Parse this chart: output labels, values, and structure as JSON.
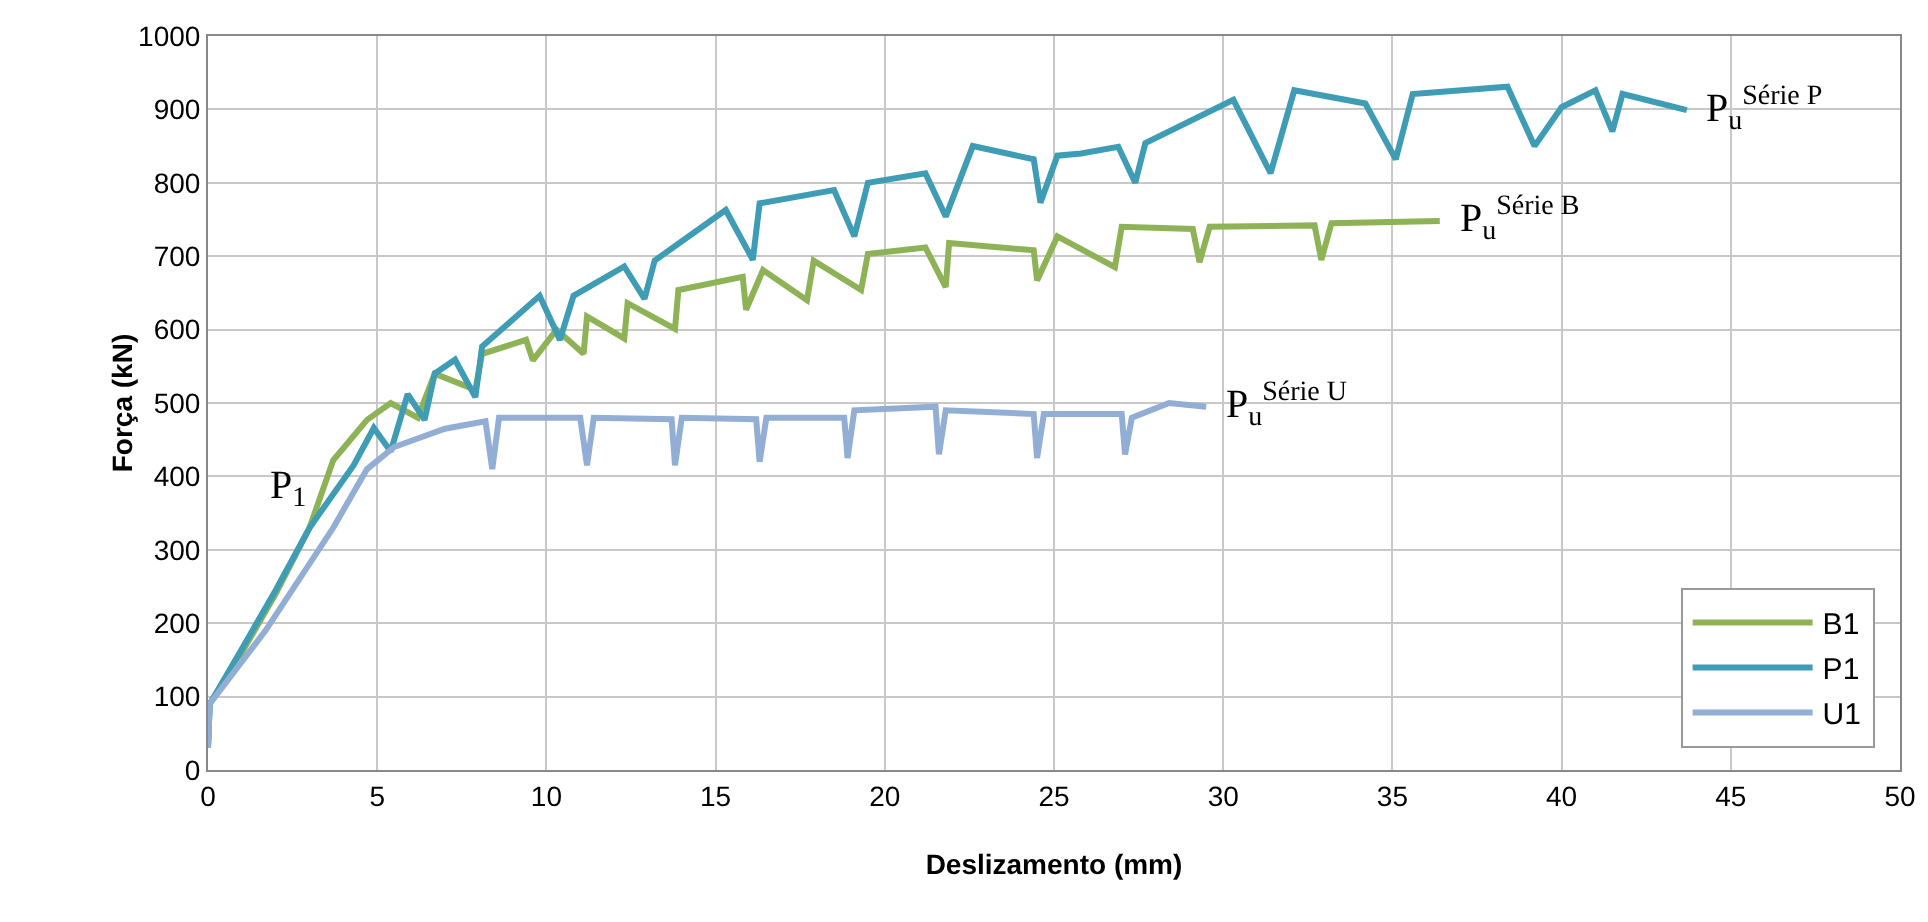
{
  "chart_data": {
    "type": "line",
    "xlabel": "Deslizamento (mm)",
    "ylabel": "Força (kN)",
    "xlim": [
      0,
      50
    ],
    "xticks": [
      0,
      5,
      10,
      15,
      20,
      25,
      30,
      35,
      40,
      45,
      50
    ],
    "ylim": [
      0,
      1000
    ],
    "yticks": [
      0,
      100,
      200,
      300,
      400,
      500,
      600,
      700,
      800,
      900,
      1000
    ],
    "grid": true,
    "legend": "bottom right",
    "marker": "none",
    "line_style": "solid",
    "annotations": [
      {
        "text": "P$_{1}$",
        "x": 3.7,
        "y": 422
      },
      {
        "text": "P$_{u}$$^{Série P}$",
        "x": 43.7,
        "y": 899
      },
      {
        "text": "P$_{u}$$^{Série B}$",
        "x": 36.4,
        "y": 748
      },
      {
        "text": "P$_{u}$$^{Série U}$",
        "x": 29.5,
        "y": 495
      }
    ],
    "series": [
      {
        "name": "B1",
        "color": "#8db356",
        "x": [
          0,
          0.05,
          1,
          2,
          3,
          3.7,
          4.7,
          5.4,
          6.2,
          6.7,
          7.9,
          8.1,
          9.4,
          9.6,
          10.3,
          11.1,
          11.2,
          12.3,
          12.4,
          13.8,
          13.9,
          15.8,
          15.9,
          16.4,
          17.7,
          17.9,
          19.3,
          19.5,
          21.2,
          21.8,
          21.9,
          24.4,
          24.5,
          25.1,
          26.8,
          27.0,
          29.1,
          29.3,
          29.6,
          32.7,
          32.9,
          33.2,
          36.4
        ],
        "values": [
          30,
          90,
          160,
          240,
          330,
          422,
          477,
          500,
          480,
          540,
          518,
          567,
          586,
          558,
          600,
          567,
          618,
          588,
          636,
          601,
          654,
          672,
          627,
          681,
          640,
          694,
          654,
          703,
          712,
          658,
          718,
          708,
          667,
          727,
          685,
          740,
          737,
          692,
          740,
          742,
          695,
          745,
          748
        ]
      },
      {
        "name": "P1",
        "color": "#3e9cb4",
        "x": [
          0,
          0.05,
          1,
          2,
          3,
          4.3,
          4.9,
          5.4,
          5.9,
          6.4,
          6.7,
          7.3,
          7.9,
          8.1,
          9.8,
          10.4,
          10.8,
          12.3,
          12.9,
          13.2,
          15.3,
          16.1,
          16.3,
          18.5,
          19.1,
          19.5,
          21.2,
          21.8,
          22.6,
          24.4,
          24.6,
          25.1,
          25.8,
          26.9,
          27.4,
          27.7,
          30.3,
          31.4,
          32.1,
          34.2,
          35.1,
          35.6,
          38.4,
          39.2,
          40.0,
          41.0,
          41.5,
          41.8,
          43.7
        ],
        "values": [
          30,
          90,
          165,
          245,
          330,
          415,
          466,
          434,
          512,
          477,
          540,
          559,
          508,
          577,
          646,
          586,
          646,
          686,
          642,
          694,
          763,
          695,
          772,
          790,
          727,
          800,
          813,
          754,
          850,
          832,
          773,
          837,
          840,
          849,
          800,
          854,
          913,
          813,
          926,
          908,
          832,
          921,
          931,
          850,
          903,
          926,
          870,
          921,
          899
        ]
      },
      {
        "name": "U1",
        "color": "#92aed4",
        "x": [
          0,
          0.05,
          1.7,
          3.7,
          4.7,
          5.5,
          7,
          8.2,
          8.4,
          8.6,
          11,
          11.2,
          11.4,
          13.7,
          13.8,
          14.0,
          16.2,
          16.3,
          16.5,
          18.8,
          18.9,
          19.1,
          21.5,
          21.6,
          21.8,
          24.4,
          24.5,
          24.7,
          27.0,
          27.1,
          27.3,
          28.4,
          29.5
        ],
        "values": [
          30,
          90,
          190,
          330,
          410,
          440,
          465,
          475,
          410,
          480,
          480,
          415,
          480,
          478,
          415,
          480,
          478,
          420,
          480,
          480,
          425,
          490,
          495,
          430,
          490,
          485,
          425,
          485,
          485,
          430,
          480,
          500,
          495
        ]
      }
    ]
  }
}
